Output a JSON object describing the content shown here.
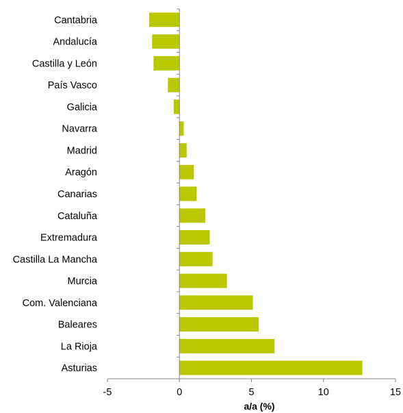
{
  "chart_data": {
    "type": "bar",
    "orientation": "horizontal",
    "categories": [
      "Cantabria",
      "Andalucía",
      "Castilla y León",
      "País Vasco",
      "Galicia",
      "Navarra",
      "Madrid",
      "Aragón",
      "Canarias",
      "Cataluña",
      "Extremadura",
      "Castilla La Mancha",
      "Murcia",
      "Com. Valenciana",
      "Baleares",
      "La Rioja",
      "Asturias"
    ],
    "values": [
      -2.1,
      -1.9,
      -1.8,
      -0.8,
      -0.4,
      0.3,
      0.5,
      1.0,
      1.2,
      1.8,
      2.1,
      2.3,
      3.3,
      5.1,
      5.5,
      6.6,
      12.7
    ],
    "title": "",
    "xlabel": "a/a (%)",
    "ylabel": "",
    "xlim": [
      -5,
      15
    ],
    "xticks": [
      -5,
      0,
      5,
      10,
      15
    ],
    "grid": false,
    "legend": "none",
    "bar_color": "#bac800",
    "axis_color": "#868686"
  }
}
